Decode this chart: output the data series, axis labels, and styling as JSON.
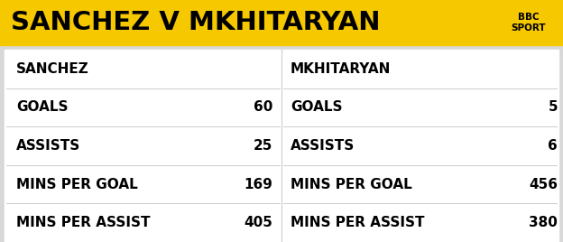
{
  "title": "SANCHEZ V MKHITARYAN",
  "title_bg_color": "#F5C800",
  "title_text_color": "#000000",
  "bg_color": "#D8D8D8",
  "content_bg_color": "#FFFFFF",
  "bbc_sport_text": "BBC\nSPORT",
  "bbc_sport_bg": "#F5C800",
  "left_player": "SANCHEZ",
  "right_player": "MKHITARYAN",
  "left_labels": [
    "GOALS",
    "ASSISTS",
    "MINS PER GOAL",
    "MINS PER ASSIST"
  ],
  "left_values": [
    "60",
    "25",
    "169",
    "405"
  ],
  "right_labels": [
    "GOALS",
    "ASSISTS",
    "MINS PER GOAL",
    "MINS PER ASSIST"
  ],
  "right_values": [
    "5",
    "6",
    "456",
    "380"
  ],
  "label_fontsize": 11,
  "title_fontsize": 21,
  "player_fontsize": 11
}
